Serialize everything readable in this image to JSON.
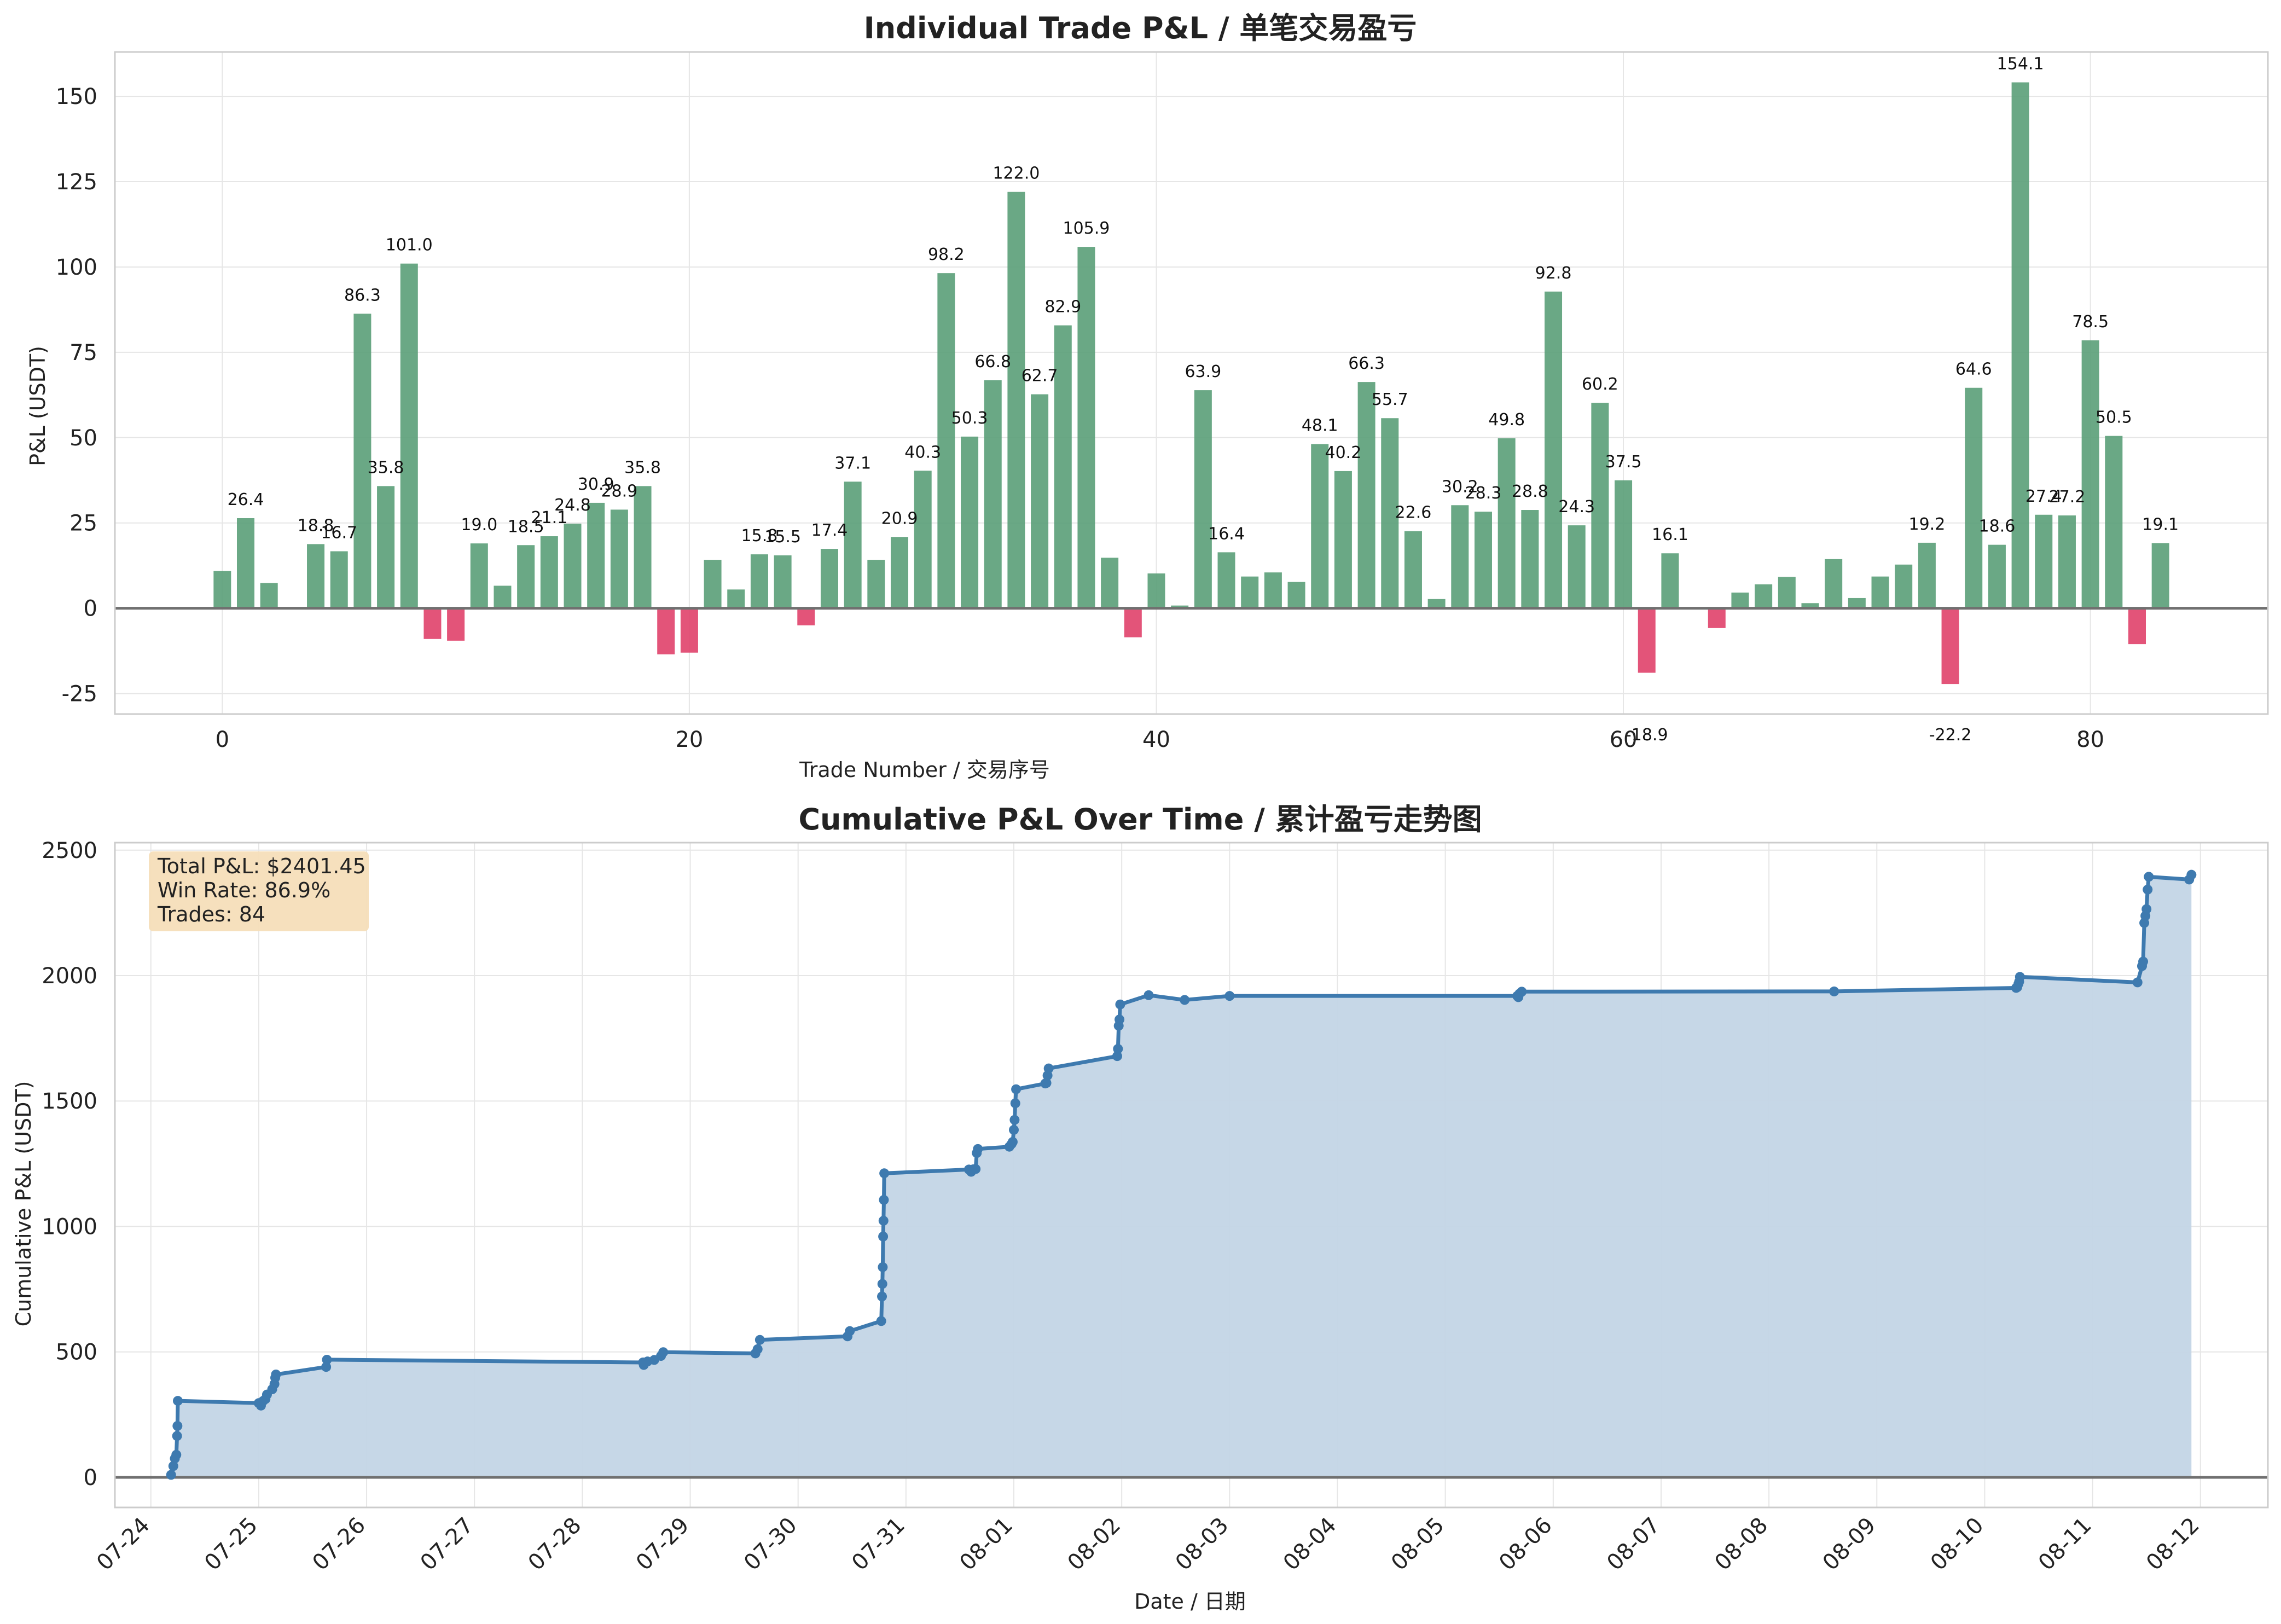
{
  "colors": {
    "win_bar": "#5a9e78",
    "loss_bar": "#e0416a",
    "line": "#3e7aaf",
    "area": "#c3d5e6",
    "grid": "#e6e6e6",
    "zero_line": "#707070",
    "stats_box": "#f5deb9"
  },
  "chart_data": [
    {
      "type": "bar",
      "title": "Individual Trade P&L / 单笔交易盈亏",
      "xlabel": "Trade Number / 交易序号",
      "ylabel": "P&L (USDT)",
      "xlim": [
        -4.6,
        87.6
      ],
      "ylim": [
        -31,
        163
      ],
      "xticks": [
        0,
        20,
        40,
        60,
        80
      ],
      "yticks": [
        -25,
        0,
        25,
        50,
        75,
        100,
        125,
        150
      ],
      "grid": true,
      "label_threshold": 15,
      "values": [
        10.9,
        26.4,
        7.4,
        0.0,
        18.8,
        16.7,
        86.3,
        35.8,
        101.0,
        -9.0,
        -9.5,
        19.0,
        6.6,
        18.5,
        21.1,
        24.8,
        30.9,
        28.9,
        35.8,
        -13.5,
        -13.0,
        14.2,
        5.5,
        15.8,
        15.5,
        -5.0,
        17.4,
        37.1,
        14.2,
        20.9,
        40.3,
        98.2,
        50.3,
        66.8,
        122.0,
        62.7,
        82.9,
        105.9,
        14.8,
        -8.5,
        10.2,
        0.8,
        63.9,
        16.4,
        9.3,
        10.5,
        7.7,
        48.1,
        40.2,
        66.3,
        55.7,
        22.6,
        2.7,
        30.2,
        28.3,
        49.8,
        28.8,
        92.8,
        24.3,
        60.2,
        37.5,
        -18.9,
        16.1,
        0.0,
        -5.8,
        4.6,
        7.0,
        9.2,
        1.5,
        14.4,
        3.0,
        9.3,
        12.8,
        19.2,
        -22.2,
        64.6,
        18.6,
        154.1,
        27.4,
        27.2,
        78.5,
        50.5,
        -10.5,
        19.1
      ]
    },
    {
      "type": "area",
      "title": "Cumulative P&L Over Time / 累计盈亏走势图",
      "xlabel": "Date / 日期",
      "ylabel": "Cumulative P&L (USDT)",
      "xlim": [
        "2023-07-23T16:00",
        "2023-08-12T15:00"
      ],
      "ylim": [
        -120,
        2530
      ],
      "yticks": [
        0,
        500,
        1000,
        1500,
        2000,
        2500
      ],
      "xtick_labels": [
        "07-24",
        "07-25",
        "07-26",
        "07-27",
        "07-28",
        "07-29",
        "07-30",
        "07-31",
        "08-01",
        "08-02",
        "08-03",
        "08-04",
        "08-05",
        "08-06",
        "08-07",
        "08-08",
        "08-09",
        "08-10",
        "08-11",
        "08-12"
      ],
      "grid": true,
      "stats": [
        "Total P&L: $2401.45",
        "Win Rate: 86.9%",
        "Trades: 84"
      ],
      "points": [
        [
          "2023-07-24T04:30",
          10
        ],
        [
          "2023-07-24T05:00",
          45
        ],
        [
          "2023-07-24T05:20",
          75
        ],
        [
          "2023-07-24T05:40",
          90
        ],
        [
          "2023-07-24T05:50",
          165
        ],
        [
          "2023-07-24T05:55",
          205
        ],
        [
          "2023-07-24T06:00",
          305
        ],
        [
          "2023-07-25T00:00",
          296
        ],
        [
          "2023-07-25T00:30",
          286
        ],
        [
          "2023-07-25T01:00",
          305
        ],
        [
          "2023-07-25T01:30",
          312
        ],
        [
          "2023-07-25T01:50",
          330
        ],
        [
          "2023-07-25T03:00",
          351
        ],
        [
          "2023-07-25T03:30",
          372
        ],
        [
          "2023-07-25T03:40",
          397
        ],
        [
          "2023-07-25T03:50",
          410
        ],
        [
          "2023-07-25T15:00",
          440
        ],
        [
          "2023-07-25T15:10",
          469
        ],
        [
          "2023-07-28T13:30",
          458
        ],
        [
          "2023-07-28T13:40",
          448
        ],
        [
          "2023-07-28T14:30",
          462
        ],
        [
          "2023-07-28T16:00",
          468
        ],
        [
          "2023-07-28T17:30",
          484
        ],
        [
          "2023-07-28T18:00",
          499
        ],
        [
          "2023-07-29T14:30",
          494
        ],
        [
          "2023-07-29T15:00",
          511
        ],
        [
          "2023-07-29T15:30",
          548
        ],
        [
          "2023-07-30T11:00",
          562
        ],
        [
          "2023-07-30T11:30",
          583
        ],
        [
          "2023-07-30T18:30",
          623
        ],
        [
          "2023-07-30T18:40",
          721
        ],
        [
          "2023-07-30T18:45",
          771
        ],
        [
          "2023-07-30T18:50",
          838
        ],
        [
          "2023-07-30T18:55",
          960
        ],
        [
          "2023-07-30T19:00",
          1023
        ],
        [
          "2023-07-30T19:05",
          1106
        ],
        [
          "2023-07-30T19:10",
          1212
        ],
        [
          "2023-07-31T14:00",
          1227
        ],
        [
          "2023-07-31T14:30",
          1218
        ],
        [
          "2023-07-31T15:00",
          1228
        ],
        [
          "2023-07-31T15:30",
          1229
        ],
        [
          "2023-07-31T15:45",
          1293
        ],
        [
          "2023-07-31T16:00",
          1309
        ],
        [
          "2023-07-31T23:00",
          1318
        ],
        [
          "2023-07-31T23:30",
          1329
        ],
        [
          "2023-07-31T23:45",
          1337
        ],
        [
          "2023-08-01T00:00",
          1385
        ],
        [
          "2023-08-01T00:10",
          1425
        ],
        [
          "2023-08-01T00:20",
          1491
        ],
        [
          "2023-08-01T00:30",
          1547
        ],
        [
          "2023-08-01T07:00",
          1570
        ],
        [
          "2023-08-01T07:15",
          1572
        ],
        [
          "2023-08-01T07:30",
          1602
        ],
        [
          "2023-08-01T07:45",
          1630
        ],
        [
          "2023-08-01T23:00",
          1679
        ],
        [
          "2023-08-01T23:10",
          1708
        ],
        [
          "2023-08-01T23:20",
          1800
        ],
        [
          "2023-08-01T23:30",
          1825
        ],
        [
          "2023-08-01T23:40",
          1885
        ],
        [
          "2023-08-02T06:00",
          1922
        ],
        [
          "2023-08-02T14:00",
          1903
        ],
        [
          "2023-08-03T00:00",
          1919
        ],
        [
          "2023-08-05T16:00",
          1919
        ],
        [
          "2023-08-05T16:15",
          1914
        ],
        [
          "2023-08-05T16:30",
          1928
        ],
        [
          "2023-08-05T17:00",
          1936
        ],
        [
          "2023-08-08T14:30",
          1937
        ],
        [
          "2023-08-10T07:00",
          1951
        ],
        [
          "2023-08-10T07:15",
          1954
        ],
        [
          "2023-08-10T07:30",
          1967
        ],
        [
          "2023-08-10T07:40",
          1976
        ],
        [
          "2023-08-10T07:50",
          1995
        ],
        [
          "2023-08-11T10:00",
          1973
        ],
        [
          "2023-08-11T11:00",
          2038
        ],
        [
          "2023-08-11T11:15",
          2056
        ],
        [
          "2023-08-11T11:30",
          2210
        ],
        [
          "2023-08-11T11:45",
          2238
        ],
        [
          "2023-08-11T12:00",
          2265
        ],
        [
          "2023-08-11T12:15",
          2343
        ],
        [
          "2023-08-11T12:30",
          2394
        ],
        [
          "2023-08-11T21:30",
          2383
        ],
        [
          "2023-08-11T22:00",
          2402
        ]
      ]
    }
  ]
}
